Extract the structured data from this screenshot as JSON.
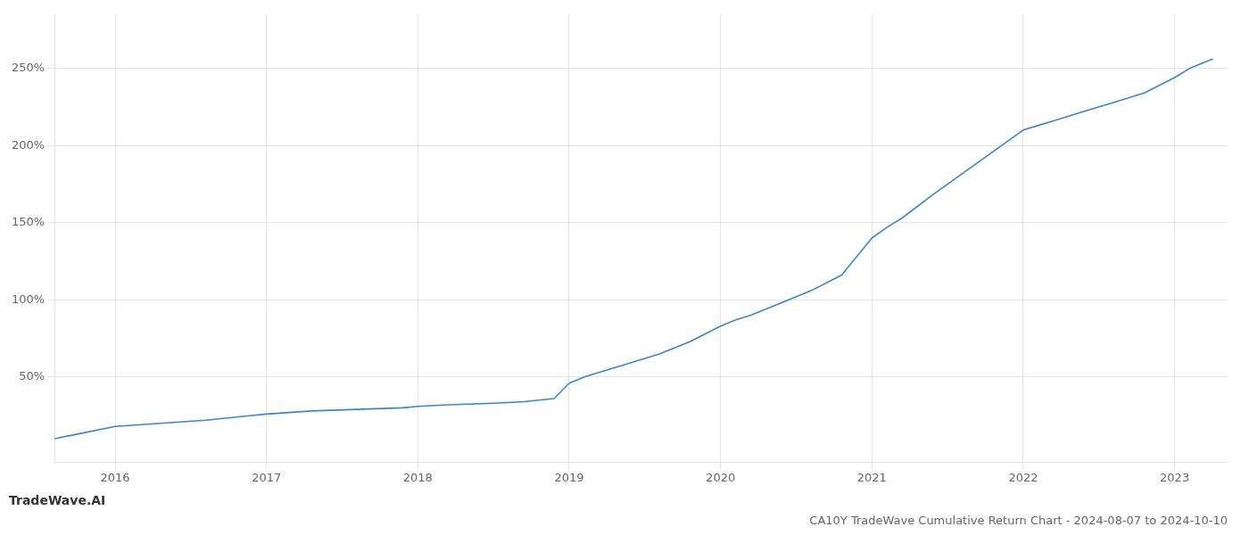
{
  "chart_data": {
    "type": "line",
    "title": "CA10Y TradeWave Cumulative Return Chart - 2024-08-07 to 2024-10-10",
    "annotations": [
      "TradeWave.AI"
    ],
    "color": "#3a86c8",
    "grid": true,
    "x": [
      2015.6,
      2015.75,
      2016.0,
      2016.3,
      2016.6,
      2016.9,
      2017.0,
      2017.3,
      2017.6,
      2017.9,
      2018.0,
      2018.2,
      2018.5,
      2018.7,
      2018.9,
      2019.0,
      2019.1,
      2019.2,
      2019.4,
      2019.6,
      2019.8,
      2020.0,
      2020.1,
      2020.2,
      2020.4,
      2020.6,
      2020.8,
      2021.0,
      2021.1,
      2021.2,
      2021.4,
      2021.6,
      2021.8,
      2022.0,
      2022.1,
      2022.2,
      2022.4,
      2022.6,
      2022.8,
      2023.0,
      2023.1,
      2023.2,
      2023.25
    ],
    "values": [
      0.1,
      0.13,
      0.18,
      0.2,
      0.22,
      0.25,
      0.26,
      0.28,
      0.29,
      0.3,
      0.31,
      0.32,
      0.33,
      0.34,
      0.36,
      0.46,
      0.5,
      0.53,
      0.59,
      0.65,
      0.73,
      0.83,
      0.87,
      0.9,
      0.98,
      1.06,
      1.16,
      1.4,
      1.47,
      1.53,
      1.68,
      1.82,
      1.96,
      2.1,
      2.13,
      2.16,
      2.22,
      2.28,
      2.34,
      2.44,
      2.5,
      2.54,
      2.56
    ],
    "xlim": [
      2015.6,
      2023.35
    ],
    "xticks": [
      2016,
      2017,
      2018,
      2019,
      2020,
      2021,
      2022,
      2023
    ],
    "ylim": [
      -0.05,
      2.85
    ],
    "yticks": [
      {
        "value": 0.5,
        "label": "50%"
      },
      {
        "value": 1.0,
        "label": "100%"
      },
      {
        "value": 1.5,
        "label": "150%"
      },
      {
        "value": 2.0,
        "label": "200%"
      },
      {
        "value": 2.5,
        "label": "250%"
      }
    ]
  }
}
